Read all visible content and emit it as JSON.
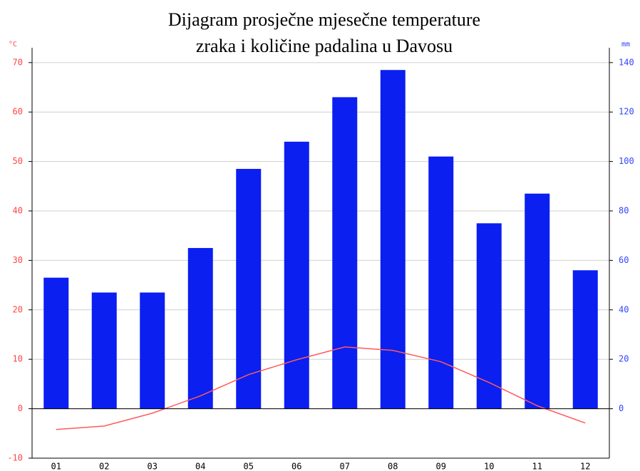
{
  "chart_data": {
    "type": "bar",
    "title": [
      "Dijagram prosječne mjesečne temperature",
      "zraka i količine padalina u Davosu"
    ],
    "y_label": "°C",
    "y2_label": "mm",
    "categories": [
      "01",
      "02",
      "03",
      "04",
      "05",
      "06",
      "07",
      "08",
      "09",
      "10",
      "11",
      "12"
    ],
    "series": [
      {
        "type": "bar",
        "axis": "y2",
        "color": "#0a1ff0",
        "values": [
          53,
          47,
          47,
          65,
          97,
          108,
          126,
          137,
          102,
          75,
          87,
          56
        ]
      },
      {
        "type": "line",
        "axis": "y",
        "color": "#ff5a5a",
        "values": [
          -4.2,
          -3.5,
          -0.9,
          2.6,
          6.9,
          9.9,
          12.5,
          11.8,
          9.5,
          5.3,
          0.6,
          -2.9
        ]
      }
    ],
    "ylim": [
      -10,
      73
    ],
    "yticks": [
      -10,
      0,
      10,
      20,
      30,
      40,
      50,
      60,
      70
    ],
    "y2lim": [
      -20,
      146
    ],
    "y2ticks": [
      0,
      20,
      40,
      60,
      80,
      100,
      120,
      140
    ],
    "grid": true
  }
}
